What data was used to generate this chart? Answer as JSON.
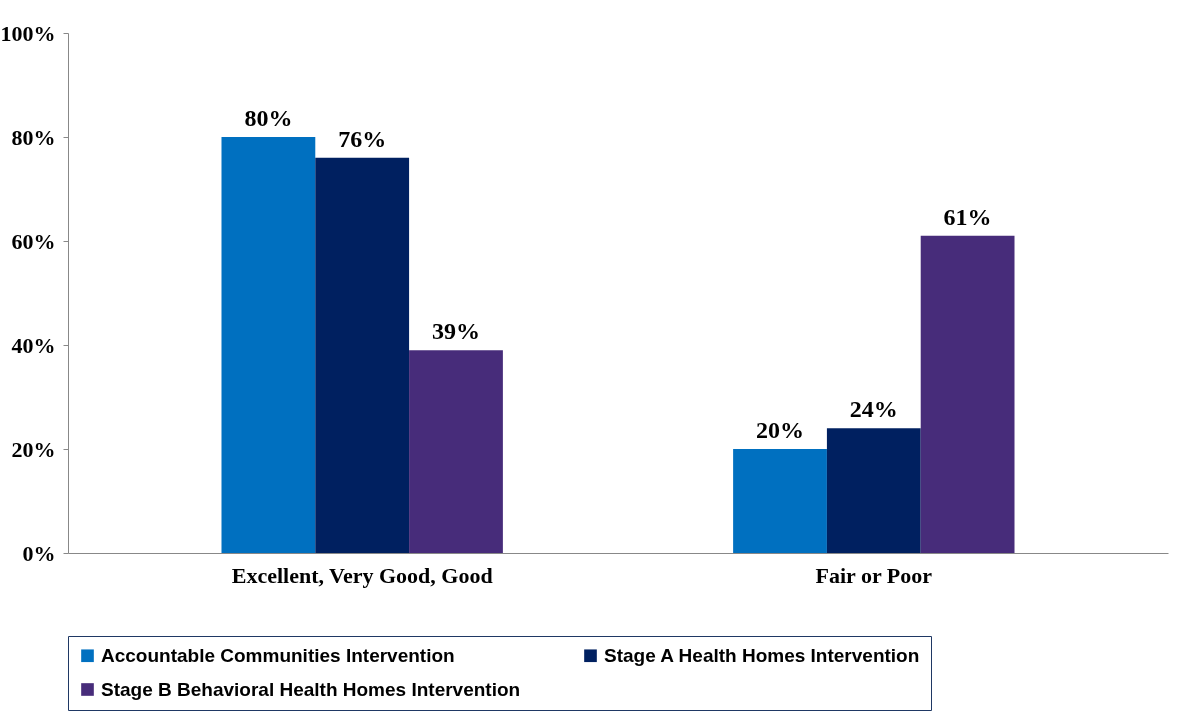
{
  "chart_data": {
    "type": "bar",
    "categories": [
      "Excellent, Very Good, Good",
      "Fair or Poor"
    ],
    "series": [
      {
        "name": "Accountable Communities Intervention",
        "color": "#0070c0",
        "values": [
          80,
          20
        ],
        "value_labels": [
          "80%",
          "20%"
        ]
      },
      {
        "name": "Stage A Health Homes Intervention",
        "color": "#002060",
        "values": [
          76,
          24
        ],
        "value_labels": [
          "76%",
          "24%"
        ]
      },
      {
        "name": "Stage B Behavioral Health Homes Intervention",
        "color": "#472c7a",
        "values": [
          39,
          61
        ],
        "value_labels": [
          "39%",
          "61%"
        ]
      }
    ],
    "ylim": [
      0,
      100
    ],
    "yticks": [
      {
        "value": 0,
        "label": "0%"
      },
      {
        "value": 20,
        "label": "20%"
      },
      {
        "value": 40,
        "label": "40%"
      },
      {
        "value": 60,
        "label": "60%"
      },
      {
        "value": 80,
        "label": "80%"
      },
      {
        "value": 100,
        "label": "100%"
      }
    ],
    "legend": "bottom"
  }
}
